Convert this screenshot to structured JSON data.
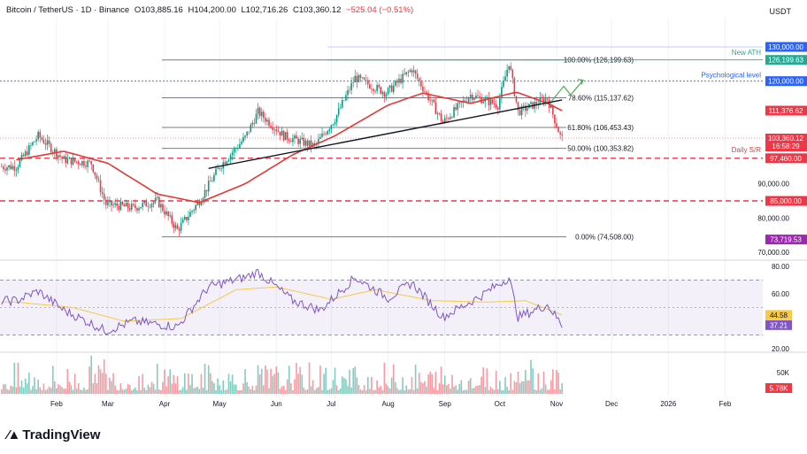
{
  "header": {
    "symbol": "Bitcoin / TetherUS · 1D · Binance",
    "open": "O103,885.16",
    "high": "H104,200.00",
    "low": "L102,716.26",
    "close": "C103,360.12",
    "change": "−525.04 (−0.51%)"
  },
  "quote_currency": "USDT",
  "brand": "TradingView",
  "chart_data": [
    {
      "type": "line",
      "panel": "price",
      "x_axis_labels": [
        "Feb",
        "Mar",
        "Apr",
        "May",
        "Jun",
        "Jul",
        "Aug",
        "Sep",
        "Oct",
        "Nov",
        "Dec",
        "2026",
        "Feb"
      ],
      "y_tick_labels": [
        "130,000.00",
        "120,000.00",
        "90,000.00",
        "80,000.00",
        "70,000.00"
      ],
      "ylim": [
        70000,
        130000
      ],
      "series": [
        {
          "approx_close_every_2_weeks": [
            [
              "2025-01-10",
              95000
            ],
            [
              "2025-01-22",
              104000
            ],
            [
              "2025-02-05",
              97000
            ],
            [
              "2025-02-20",
              96000
            ],
            [
              "2025-02-28",
              84000
            ],
            [
              "2025-03-15",
              83000
            ],
            [
              "2025-03-28",
              85000
            ],
            [
              "2025-04-08",
              76500
            ],
            [
              "2025-04-20",
              85000
            ],
            [
              "2025-05-01",
              95000
            ],
            [
              "2025-05-15",
              103500
            ],
            [
              "2025-05-22",
              111000
            ],
            [
              "2025-06-05",
              104000
            ],
            [
              "2025-06-22",
              101000
            ],
            [
              "2025-07-03",
              109000
            ],
            [
              "2025-07-14",
              121000
            ],
            [
              "2025-07-31",
              116500
            ],
            [
              "2025-08-14",
              123500
            ],
            [
              "2025-08-31",
              108000
            ],
            [
              "2025-09-15",
              116000
            ],
            [
              "2025-09-30",
              113000
            ],
            [
              "2025-10-06",
              125500
            ],
            [
              "2025-10-11",
              111000
            ],
            [
              "2025-10-27",
              115000
            ],
            [
              "2025-11-03",
              104000
            ],
            [
              "2025-11-04",
              103360
            ]
          ]
        },
        {
          "approx_ma_every_2_weeks": [
            [
              "2025-01-10",
              97000
            ],
            [
              "2025-02-05",
              99500
            ],
            [
              "2025-03-01",
              96000
            ],
            [
              "2025-03-28",
              87000
            ],
            [
              "2025-04-20",
              84500
            ],
            [
              "2025-05-15",
              90000
            ],
            [
              "2025-06-10",
              98500
            ],
            [
              "2025-07-03",
              104000
            ],
            [
              "2025-08-01",
              113000
            ],
            [
              "2025-08-20",
              116500
            ],
            [
              "2025-09-15",
              113500
            ],
            [
              "2025-10-10",
              116800
            ],
            [
              "2025-10-27",
              113500
            ],
            [
              "2025-11-04",
              111377
            ]
          ]
        }
      ],
      "fibonacci": [
        {
          "level": 1.0,
          "price": 126199.63,
          "label": "100.00% (126,199.63)"
        },
        {
          "level": 0.786,
          "price": 115137.62,
          "label": "78.60% (115,137.62)"
        },
        {
          "level": 0.618,
          "price": 106453.43,
          "label": "61.80% (106,453.43)"
        },
        {
          "level": 0.5,
          "price": 100353.82,
          "label": "50.00% (100,353.82)"
        },
        {
          "level": 0.0,
          "price": 74508.0,
          "label": "0.00% (74,508.00)"
        }
      ],
      "horizontal_lines": [
        {
          "price": 130000,
          "color": "#2962ff",
          "note": "New ATH"
        },
        {
          "price": 126199.63,
          "color": "#22ab94"
        },
        {
          "price": 120000,
          "color": "#2962ff",
          "note": "Psychological level"
        },
        {
          "price": 97460,
          "color": "#f23645",
          "note": "Daily S/R"
        },
        {
          "price": 85000,
          "color": "#f23645"
        }
      ],
      "trendline": [
        [
          "2025-04-25",
          94500
        ],
        [
          "2025-11-04",
          114500
        ]
      ],
      "price_labels": [
        {
          "text": "130,000.00",
          "color": "#2962ff"
        },
        {
          "text": "126,199.63",
          "color": "#22ab94"
        },
        {
          "text": "120,000.00",
          "color": "#2962ff"
        },
        {
          "text": "111,376.62",
          "color": "#f23645"
        },
        {
          "text": "103,360.12",
          "color": "#f23645"
        },
        {
          "text": "16:58:29",
          "color": "#f23645"
        },
        {
          "text": "97,460.00",
          "color": "#f23645"
        },
        {
          "text": "85,000.00",
          "color": "#f23645"
        },
        {
          "text": "73,719.53",
          "color": "#9c27b0"
        }
      ],
      "annotations": [
        "New ATH",
        "Psychological level",
        "Daily S/R"
      ]
    },
    {
      "type": "line",
      "panel": "rsi",
      "y_tick_labels": [
        "80.00",
        "60.00",
        "20.00"
      ],
      "ylim": [
        20,
        80
      ],
      "bands": [
        70,
        50,
        30
      ],
      "series": [
        {
          "approx_every_2_weeks": [
            [
              "2025-01-10",
              55
            ],
            [
              "2025-01-22",
              62
            ],
            [
              "2025-02-05",
              48
            ],
            [
              "2025-02-28",
              33
            ],
            [
              "2025-03-15",
              40
            ],
            [
              "2025-04-08",
              36
            ],
            [
              "2025-04-25",
              65
            ],
            [
              "2025-05-15",
              72
            ],
            [
              "2025-05-22",
              76
            ],
            [
              "2025-06-10",
              55
            ],
            [
              "2025-06-25",
              48
            ],
            [
              "2025-07-14",
              72
            ],
            [
              "2025-08-01",
              57
            ],
            [
              "2025-08-14",
              68
            ],
            [
              "2025-08-31",
              43
            ],
            [
              "2025-09-20",
              58
            ],
            [
              "2025-10-06",
              72
            ],
            [
              "2025-10-11",
              43
            ],
            [
              "2025-10-27",
              52
            ],
            [
              "2025-11-04",
              37.21
            ]
          ]
        },
        {
          "approx_every_2_weeks": [
            [
              "2025-01-10",
              54
            ],
            [
              "2025-02-10",
              50
            ],
            [
              "2025-03-10",
              40
            ],
            [
              "2025-04-10",
              42
            ],
            [
              "2025-05-10",
              63
            ],
            [
              "2025-06-01",
              65
            ],
            [
              "2025-07-01",
              56
            ],
            [
              "2025-07-25",
              63
            ],
            [
              "2025-08-25",
              55
            ],
            [
              "2025-09-25",
              54
            ],
            [
              "2025-10-15",
              55
            ],
            [
              "2025-11-04",
              44.58
            ]
          ]
        }
      ],
      "value_labels": [
        {
          "text": "44.58",
          "color": "#f7c948"
        },
        {
          "text": "37.21",
          "color": "#7e57c2"
        }
      ]
    },
    {
      "type": "bar",
      "panel": "volume",
      "y_tick_labels": [
        "50K"
      ],
      "value_labels": [
        {
          "text": "5.78K",
          "color": "#f23645"
        }
      ]
    }
  ]
}
